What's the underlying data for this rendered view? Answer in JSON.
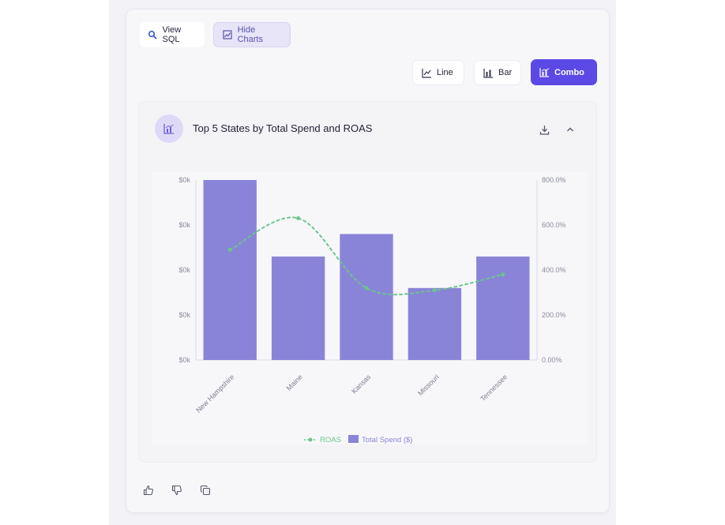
{
  "toolbar": {
    "view_sql": "View SQL",
    "hide_charts": "Hide Charts"
  },
  "chart_types": {
    "line": "Line",
    "bar": "Bar",
    "combo": "Combo"
  },
  "chart_header": {
    "title": "Top 5 States by Total Spend and ROAS"
  },
  "chart_data": {
    "type": "bar",
    "title": "Top 5 States by Total Spend and ROAS",
    "categories": [
      "New Hampshire",
      "Maine",
      "Kansas",
      "Missouri",
      "Tennessee"
    ],
    "series": [
      {
        "name": "Total Spend ($)",
        "kind": "bar",
        "axis": "left",
        "color": "#8a84d8",
        "values": [
          4.0,
          2.3,
          2.8,
          1.6,
          2.3
        ]
      },
      {
        "name": "ROAS",
        "kind": "line",
        "axis": "right",
        "color": "#6cc58c",
        "values": [
          490,
          630,
          320,
          310,
          380
        ]
      }
    ],
    "y_left_ticks": [
      "$0k",
      "$0k",
      "$0k",
      "$0k",
      "$0k"
    ],
    "y_right_ticks": [
      "0.00%",
      "200.0%",
      "400.0%",
      "600.0%",
      "800.0%"
    ],
    "y_left_range": [
      0,
      4
    ],
    "y_right_range": [
      0,
      800
    ],
    "grid": false,
    "legend_position": "bottom"
  },
  "legend": {
    "roas": "ROAS",
    "spend": "Total Spend ($)"
  },
  "icons": {
    "view_sql": "search-icon",
    "hide_charts": "chart-icon",
    "line": "line-chart-icon",
    "bar": "bar-chart-icon",
    "combo": "combo-chart-icon",
    "download": "download-icon",
    "collapse": "chevron-up-icon",
    "like": "thumbs-up-icon",
    "dislike": "thumbs-down-icon",
    "copy": "copy-icon"
  }
}
